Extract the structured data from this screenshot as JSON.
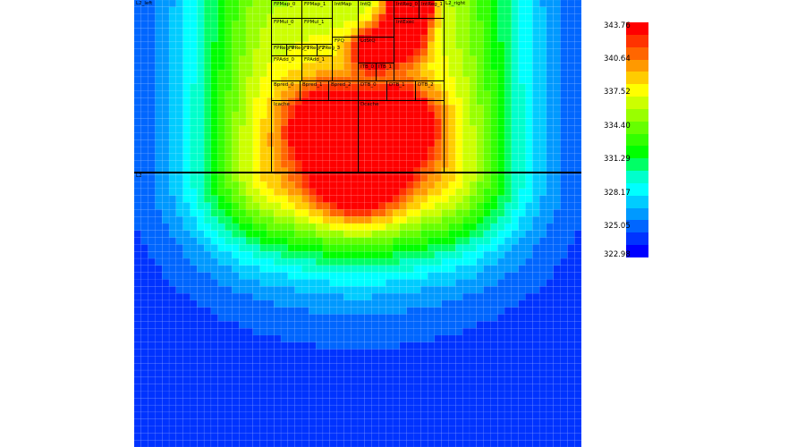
{
  "units": [
    {
      "label": "L2_left"
    },
    {
      "label": "FPMap_0"
    },
    {
      "label": "FPMap_1"
    },
    {
      "label": "IntMap"
    },
    {
      "label": "IntQ"
    },
    {
      "label": "IntReg_0"
    },
    {
      "label": "IntReg_1"
    },
    {
      "label": "L2_right"
    },
    {
      "label": "FPMul_0"
    },
    {
      "label": "FPMul_1"
    },
    {
      "label": "IntExec"
    },
    {
      "label": "FPQ"
    },
    {
      "label": "LdStQ"
    },
    {
      "label": "FPReg_0"
    },
    {
      "label": "FPReg_1"
    },
    {
      "label": "FPReg_2"
    },
    {
      "label": "FPReg_3"
    },
    {
      "label": "FPAdd_0"
    },
    {
      "label": "FPAdd_1"
    },
    {
      "label": "ITB_0"
    },
    {
      "label": "ITB_1"
    },
    {
      "label": "Bpred_0"
    },
    {
      "label": "Bpred_1"
    },
    {
      "label": "Bpred_2"
    },
    {
      "label": "DTB_0"
    },
    {
      "label": "DTB_1"
    },
    {
      "label": "DTB_2"
    },
    {
      "label": "Icache"
    },
    {
      "label": "Dcache"
    },
    {
      "label": "L2"
    }
  ],
  "colorbar": {
    "ticks": [
      "343.76",
      "340.64",
      "337.52",
      "334.40",
      "331.29",
      "328.17",
      "325.05",
      "322.98"
    ],
    "colors": [
      "#ff0000",
      "#ff3300",
      "#ff6600",
      "#ff9900",
      "#ffcc00",
      "#ffff00",
      "#ccff00",
      "#99ff00",
      "#66ff00",
      "#33ff00",
      "#00ff00",
      "#00ff66",
      "#00ffcc",
      "#00ffff",
      "#00ccff",
      "#0099ff",
      "#0066ff",
      "#0033ff",
      "#0000ff"
    ]
  }
}
